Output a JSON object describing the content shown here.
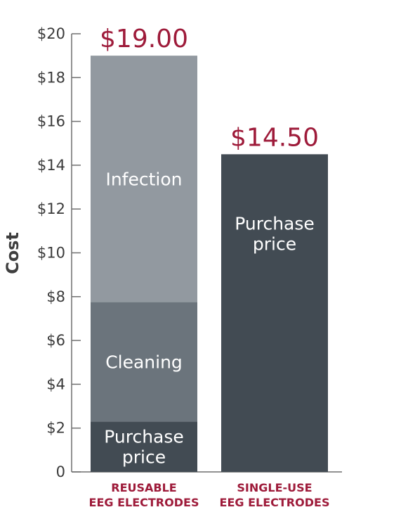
{
  "chart_data": {
    "type": "bar",
    "stacked": true,
    "ylabel": "Cost",
    "ylim": [
      0,
      20
    ],
    "yticks": [
      {
        "value": 0,
        "label": "0"
      },
      {
        "value": 2,
        "label": "$2"
      },
      {
        "value": 4,
        "label": "$4"
      },
      {
        "value": 6,
        "label": "$6"
      },
      {
        "value": 8,
        "label": "$8"
      },
      {
        "value": 10,
        "label": "$10"
      },
      {
        "value": 12,
        "label": "$12"
      },
      {
        "value": 14,
        "label": "$14"
      },
      {
        "value": 16,
        "label": "$16"
      },
      {
        "value": 18,
        "label": "$18"
      },
      {
        "value": 20,
        "label": "$20"
      }
    ],
    "grid": false,
    "categories": [
      {
        "id": "reusable",
        "label_lines": [
          "REUSABLE",
          "EEG ELECTRODES"
        ],
        "total": 19.0,
        "total_label": "$19.00",
        "segments": [
          {
            "name": "Purchase price",
            "label_lines": [
              "Purchase",
              "price"
            ],
            "value": 2.3,
            "color": "#424b53"
          },
          {
            "name": "Cleaning",
            "label_lines": [
              "Cleaning"
            ],
            "value": 5.45,
            "color": "#6b747c"
          },
          {
            "name": "Infection",
            "label_lines": [
              "Infection"
            ],
            "value": 11.25,
            "color": "#9299a0"
          }
        ]
      },
      {
        "id": "single-use",
        "label_lines": [
          "SINGLE-USE",
          "EEG ELECTRODES"
        ],
        "total": 14.5,
        "total_label": "$14.50",
        "segments": [
          {
            "name": "Purchase price",
            "label_lines": [
              "Purchase",
              "price"
            ],
            "value": 14.5,
            "color": "#424b53"
          }
        ]
      }
    ]
  }
}
